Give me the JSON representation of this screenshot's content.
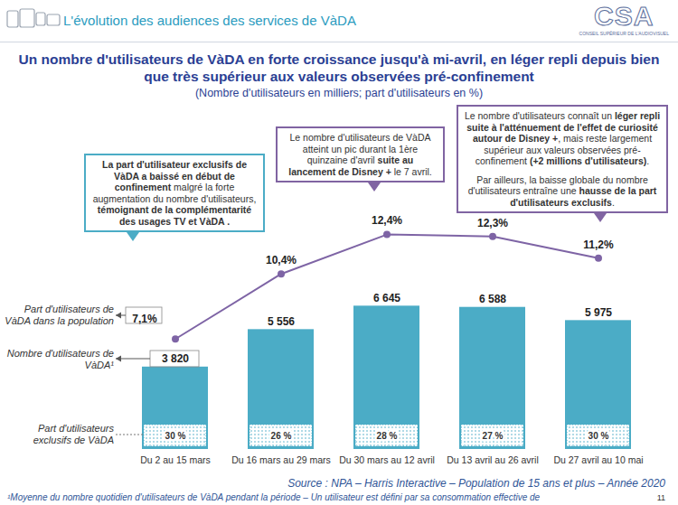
{
  "chart_data": {
    "type": "bar",
    "header": "L'évolution des audiences des services de VàDA",
    "logo": {
      "text": "CSA",
      "subtext": "CONSEIL SUPÉRIEUR DE L'AUDIOVISUEL"
    },
    "title": "Un nombre d'utilisateurs de VàDA en forte croissance jusqu'à mi-avril, en léger repli depuis bien que très supérieur aux valeurs observées pré-confinement",
    "subtitle": "(Nombre d'utilisateurs en milliers; part d'utilisateurs en %)",
    "categories": [
      "Du 2 au 15 mars",
      "Du 16 mars au 29 mars",
      "Du 30 mars au 12 avril",
      "Du 13 avril au 26 avril",
      "Du 27 avril au 10 mai"
    ],
    "series": [
      {
        "name": "Nombre d'utilisateurs de VàDA¹",
        "type": "bar",
        "color": "#4bacc6",
        "values": [
          3820,
          5556,
          6645,
          6588,
          5975
        ],
        "value_labels": [
          "3 820",
          "5 556",
          "6 645",
          "6 588",
          "5 975"
        ]
      },
      {
        "name": "Part d'utilisateurs de VàDA dans la population",
        "type": "line",
        "axis": "y2",
        "color": "#7e64a5",
        "marker": "circle",
        "values": [
          7.1,
          10.4,
          12.4,
          12.3,
          11.2
        ],
        "value_labels": [
          "7,1%",
          "10,4%",
          "12,4%",
          "12,3%",
          "11,2%"
        ]
      },
      {
        "name": "Part d'utilisateurs exclusifs de VàDA",
        "type": "label",
        "color": "#4bacc6",
        "values": [
          30,
          26,
          28,
          27,
          30
        ],
        "value_labels": [
          "30 %",
          "26 %",
          "28 %",
          "27 %",
          "30 %"
        ]
      }
    ],
    "ylim": [
      0,
      16000
    ],
    "y2lim": [
      1.5,
      19
    ],
    "tick_labels": "x",
    "data_labels": true,
    "annotations": [
      {
        "paragraphs": [
          "La part d'utilisateur exclusifs de VàDA a baissé en début de confinement malgré la forte augmentation du nombre d'utilisateurs, témoignant de la complémentarité des usages TV et VàDA ."
        ],
        "emphasis": [
          "La part d'utilisateur exclusifs de VàDA a baissé en début de confinement",
          "témoignant de la complémentarité des usages TV et VàDA ."
        ]
      },
      {
        "paragraphs": [
          "Le nombre d'utilisateurs de VàDA atteint un pic durant la 1ère quinzaine d'avril suite au lancement de Disney + le 7 avril."
        ],
        "emphasis": [
          "suite au lancement de Disney +"
        ]
      },
      {
        "paragraphs": [
          "Le nombre d'utilisateurs connaît un léger repli suite à l'atténuement de l'effet de curiosité autour de Disney +, mais reste largement supérieur aux valeurs observées pré-confinement (+2 millions d'utilisateurs).",
          "Par ailleurs, la baisse globale du nombre d'utilisateurs entraîne une hausse de la part d'utilisateurs exclusifs."
        ],
        "emphasis": [
          "léger repli suite à l'atténuement de l'effet de curiosité autour de Disney +",
          "(+2 millions d'utilisateurs)",
          "hausse de la part d'utilisateurs exclusifs"
        ]
      }
    ],
    "source": "Source : NPA – Harris Interactive – Population de 15 ans et plus – Année 2020",
    "footnote": "¹Moyenne du nombre quotidien d'utilisateurs de VàDA pendant la période – Un utilisateur est défini par sa consommation effective de",
    "page": 11
  }
}
